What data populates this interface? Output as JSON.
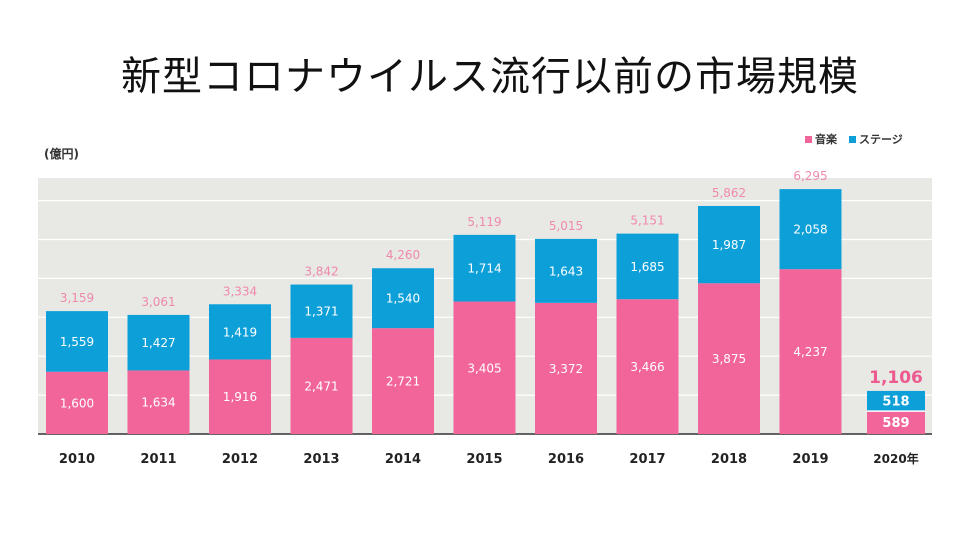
{
  "slide": {
    "title": "新型コロナウイルス流行以前の市場規模"
  },
  "chart_data": {
    "type": "bar",
    "stacked": true,
    "unit_label": "(億円)",
    "categories": [
      "2010",
      "2011",
      "2012",
      "2013",
      "2014",
      "2015",
      "2016",
      "2017",
      "2018",
      "2019",
      "2020年"
    ],
    "series": [
      {
        "name": "音楽",
        "color": "#f2659a",
        "values": [
          1600,
          1634,
          1916,
          2471,
          2721,
          3405,
          3372,
          3466,
          3875,
          4237,
          589
        ]
      },
      {
        "name": "ステージ",
        "color": "#0d9fd8",
        "values": [
          1559,
          1427,
          1419,
          1371,
          1540,
          1714,
          1643,
          1685,
          1987,
          2058,
          518
        ]
      }
    ],
    "totals": [
      3159,
      3061,
      3334,
      3842,
      4260,
      5119,
      5015,
      5151,
      5862,
      6295,
      1106
    ],
    "value_labels": {
      "音楽": [
        "1,600",
        "1,634",
        "1,916",
        "2,471",
        "2,721",
        "3,405",
        "3,372",
        "3,466",
        "3,875",
        "4,237",
        "589"
      ],
      "ステージ": [
        "1,559",
        "1,427",
        "1,419",
        "1,371",
        "1,540",
        "1,714",
        "1,643",
        "1,685",
        "1,987",
        "2,058",
        "518"
      ],
      "total": [
        "3,159",
        "3,061",
        "3,334",
        "3,842",
        "4,260",
        "5,119",
        "5,015",
        "5,151",
        "5,862",
        "6,295",
        "1,106"
      ]
    },
    "highlight_category": "2020年",
    "ylim": [
      0,
      7000
    ],
    "gridlines": [
      1000,
      2000,
      3000,
      4000,
      5000,
      6000
    ],
    "legend_position": "top-right",
    "plot_background": "#e8e8e4",
    "total_label_color": "#f08aac"
  }
}
